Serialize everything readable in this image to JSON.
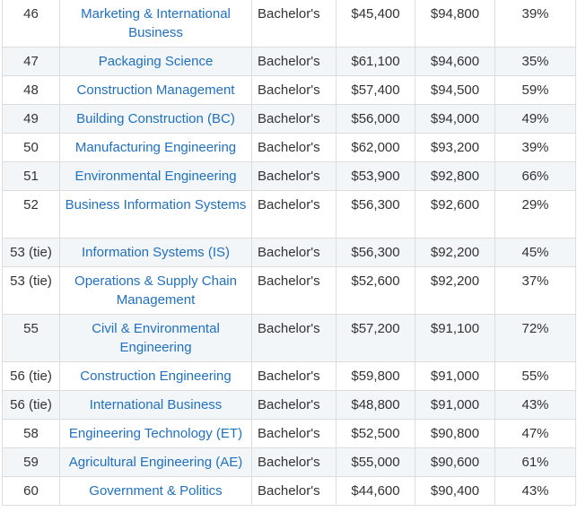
{
  "table": {
    "rows": [
      {
        "rank": "46",
        "major": "Marketing & International Business",
        "degree": "Bachelor's",
        "early_pay": "$45,400",
        "mid_pay": "$94,800",
        "meaning": "39%"
      },
      {
        "rank": "47",
        "major": "Packaging Science",
        "degree": "Bachelor's",
        "early_pay": "$61,100",
        "mid_pay": "$94,600",
        "meaning": "35%"
      },
      {
        "rank": "48",
        "major": "Construction Management",
        "degree": "Bachelor's",
        "early_pay": "$57,400",
        "mid_pay": "$94,500",
        "meaning": "59%"
      },
      {
        "rank": "49",
        "major": "Building Construction (BC)",
        "degree": "Bachelor's",
        "early_pay": "$56,000",
        "mid_pay": "$94,000",
        "meaning": "49%"
      },
      {
        "rank": "50",
        "major": "Manufacturing Engineering",
        "degree": "Bachelor's",
        "early_pay": "$62,000",
        "mid_pay": "$93,200",
        "meaning": "39%"
      },
      {
        "rank": "51",
        "major": "Environmental Engineering",
        "degree": "Bachelor's",
        "early_pay": "$53,900",
        "mid_pay": "$92,800",
        "meaning": "66%"
      },
      {
        "rank": "52",
        "major": "Business Information Systems",
        "degree": "Bachelor's",
        "early_pay": "$56,300",
        "mid_pay": "$92,600",
        "meaning": "29%"
      },
      {
        "rank": "53 (tie)",
        "major": "Information Systems (IS)",
        "degree": "Bachelor's",
        "early_pay": "$56,300",
        "mid_pay": "$92,200",
        "meaning": "45%"
      },
      {
        "rank": "53 (tie)",
        "major": "Operations & Supply Chain Management",
        "degree": "Bachelor's",
        "early_pay": "$52,600",
        "mid_pay": "$92,200",
        "meaning": "37%"
      },
      {
        "rank": "55",
        "major": "Civil & Environmental Engineering",
        "degree": "Bachelor's",
        "early_pay": "$57,200",
        "mid_pay": "$91,100",
        "meaning": "72%"
      },
      {
        "rank": "56 (tie)",
        "major": "Construction Engineering",
        "degree": "Bachelor's",
        "early_pay": "$59,800",
        "mid_pay": "$91,000",
        "meaning": "55%"
      },
      {
        "rank": "56 (tie)",
        "major": "International Business",
        "degree": "Bachelor's",
        "early_pay": "$48,800",
        "mid_pay": "$91,000",
        "meaning": "43%"
      },
      {
        "rank": "58",
        "major": "Engineering Technology (ET)",
        "degree": "Bachelor's",
        "early_pay": "$52,500",
        "mid_pay": "$90,800",
        "meaning": "47%"
      },
      {
        "rank": "59",
        "major": "Agricultural Engineering (AE)",
        "degree": "Bachelor's",
        "early_pay": "$55,000",
        "mid_pay": "$90,600",
        "meaning": "61%"
      },
      {
        "rank": "60",
        "major": "Government & Politics",
        "degree": "Bachelor's",
        "early_pay": "$44,600",
        "mid_pay": "$90,400",
        "meaning": "43%"
      }
    ]
  }
}
